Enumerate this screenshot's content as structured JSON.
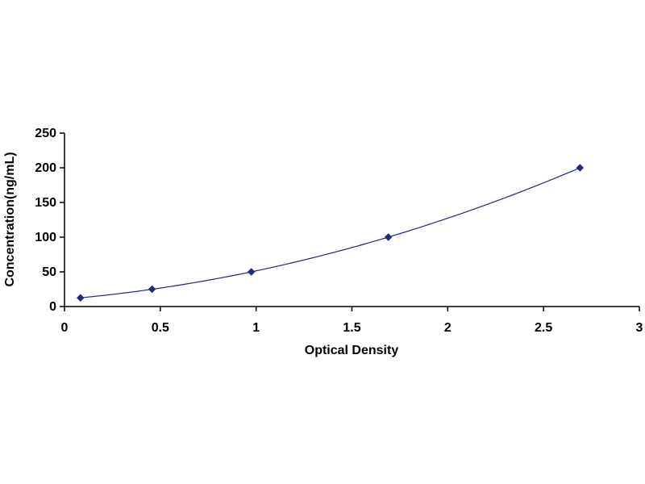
{
  "chart_data": {
    "type": "scatter",
    "title": "",
    "xlabel": "Optical Density",
    "ylabel": "Concentration(ng/mL)",
    "xlim": [
      0,
      3
    ],
    "ylim": [
      0,
      250
    ],
    "x_ticks": [
      0,
      0.5,
      1,
      1.5,
      2,
      2.5,
      3
    ],
    "x_tick_labels": [
      "0",
      "0.5",
      "1",
      "1.5",
      "2",
      "2.5",
      "3"
    ],
    "y_ticks": [
      0,
      50,
      100,
      150,
      200,
      250
    ],
    "y_tick_labels": [
      "0",
      "50",
      "100",
      "150",
      "200",
      "250"
    ],
    "grid": false,
    "legend": "none",
    "series": [
      {
        "x": [
          0.083,
          0.457,
          0.975,
          1.69,
          2.69
        ],
        "y": [
          12.5,
          25,
          50,
          100,
          200
        ]
      }
    ],
    "trendline": "smooth polynomial fit through points",
    "marker": "diamond",
    "colors": {
      "marker": "#1f2a78",
      "line": "#1f2a78",
      "axis": "#000000"
    }
  }
}
